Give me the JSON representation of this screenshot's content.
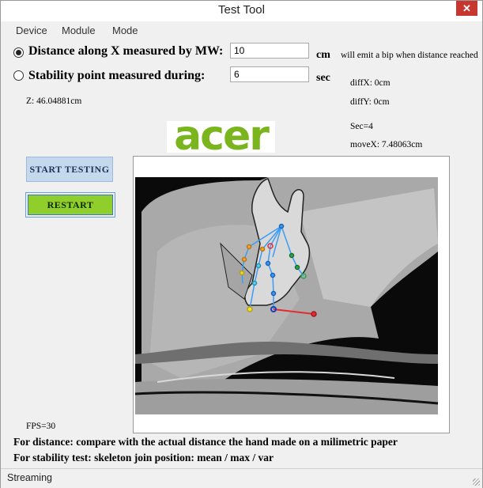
{
  "window": {
    "title": "Test Tool",
    "close_glyph": "✕"
  },
  "menu": {
    "items": [
      "Device",
      "Module",
      "Mode"
    ]
  },
  "distance": {
    "label": "Distance along X measured by MW:",
    "value": "10",
    "unit": "cm",
    "note": "will emit a bip when distance reached",
    "selected": true
  },
  "stability": {
    "label": "Stability point measured during:",
    "value": "6",
    "unit": "sec",
    "selected": false
  },
  "readouts": {
    "z": "Z: 46.04881cm",
    "diffx": "diffX: 0cm",
    "diffy": "diffY: 0cm",
    "sec": "Sec=4",
    "movex": "moveX: 7.48063cm",
    "fps": "FPS=30"
  },
  "logo": {
    "text": "acer",
    "color": "#7ab51d"
  },
  "buttons": {
    "start": "START TESTING",
    "restart": "RESTART"
  },
  "instructions": {
    "distance": "For distance: compare with the actual distance the hand made on a milimetric paper",
    "stability": "For stability test: skeleton join position: mean / max / var"
  },
  "status": {
    "text": "Streaming"
  }
}
